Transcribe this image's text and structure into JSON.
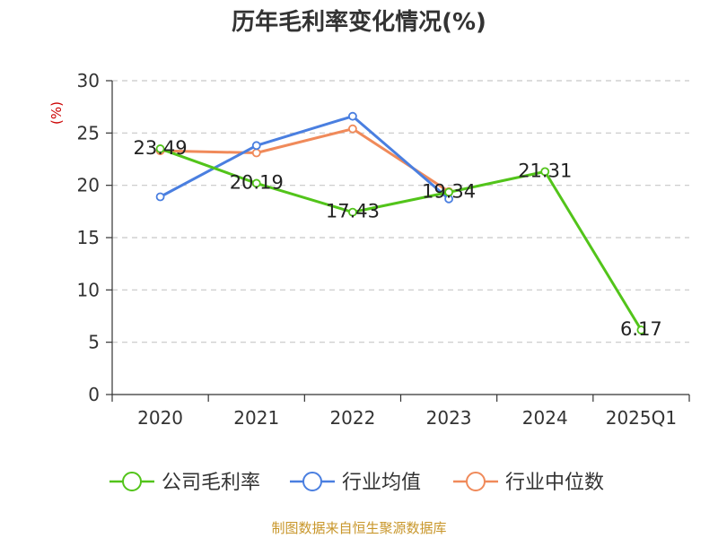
{
  "chart_data": {
    "type": "line",
    "title": "历年毛利率变化情况(%)",
    "ylabel": "(%)",
    "xlabel": "",
    "categories": [
      "2020",
      "2021",
      "2022",
      "2023",
      "2024",
      "2025Q1"
    ],
    "ylim": [
      0,
      30
    ],
    "yticks": [
      0,
      5,
      10,
      15,
      20,
      25,
      30
    ],
    "grid": true,
    "legend_position": "bottom",
    "series": [
      {
        "name": "公司毛利率",
        "color": "#52c41a",
        "values": [
          23.49,
          20.19,
          17.43,
          19.34,
          21.31,
          6.17
        ],
        "labels": [
          "23.49",
          "20.19",
          "17.43",
          "19.34",
          "21.31",
          "6.17"
        ]
      },
      {
        "name": "行业均值",
        "color": "#4a7fe0",
        "values": [
          18.9,
          23.8,
          26.6,
          18.7,
          null,
          null
        ]
      },
      {
        "name": "行业中位数",
        "color": "#f08a5a",
        "values": [
          23.3,
          23.1,
          25.4,
          19.4,
          null,
          null
        ]
      }
    ]
  },
  "footer": {
    "source": "制图数据来自恒生聚源数据库"
  }
}
